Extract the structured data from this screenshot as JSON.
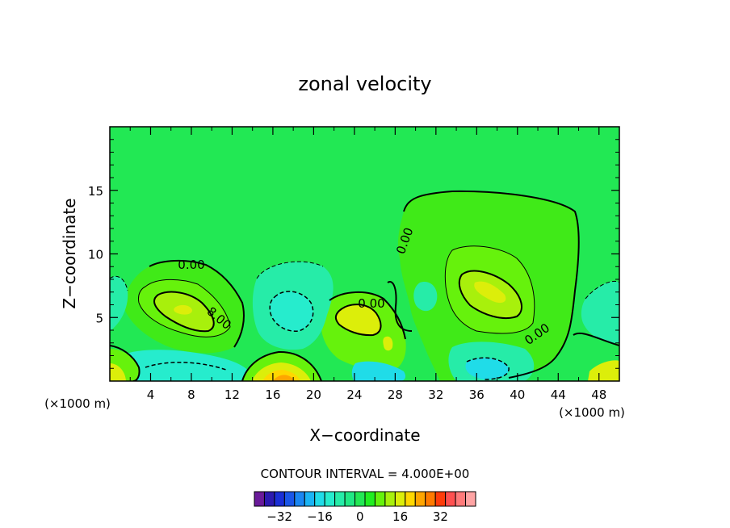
{
  "chart_data": {
    "type": "contour",
    "title": "zonal velocity",
    "xlabel": "X−coordinate",
    "ylabel": "Z−coordinate",
    "x_unit_left": "(×1000 m)",
    "x_unit_right": "(×1000 m)",
    "xlim": [
      0,
      50
    ],
    "ylim": [
      0,
      20
    ],
    "x_ticks": [
      4,
      8,
      12,
      16,
      20,
      24,
      28,
      32,
      36,
      40,
      44,
      48
    ],
    "x_tick_labels": [
      "4",
      "8",
      "12",
      "16",
      "20",
      "24",
      "28",
      "32",
      "36",
      "40",
      "44",
      "48"
    ],
    "y_ticks": [
      5,
      10,
      15
    ],
    "y_tick_labels": [
      "5",
      "10",
      "15"
    ],
    "contour_labels": [
      "0.00",
      "8.00",
      "0.00",
      "0.00",
      "0.00"
    ],
    "contour_interval_text": "CONTOUR INTERVAL = 4.000E+00",
    "colorbar": {
      "tick_labels": [
        "−32",
        "−16",
        "0",
        "16",
        "32"
      ],
      "tick_values": [
        -32,
        -16,
        0,
        16,
        32
      ],
      "levels": [
        -36,
        -32,
        -28,
        -24,
        -20,
        -16,
        -12,
        -8,
        -4,
        0,
        4,
        8,
        12,
        16,
        20,
        24,
        28,
        32,
        36
      ],
      "colors": [
        "#6a1b9a",
        "#2c1ab0",
        "#1a2fd6",
        "#1a56e8",
        "#1a86f2",
        "#1ab4f5",
        "#20dce8",
        "#26eccd",
        "#26eca8",
        "#20e884",
        "#22e854",
        "#20ee20",
        "#66f20c",
        "#a8f00c",
        "#dcee0a",
        "#ffd700",
        "#ffa500",
        "#ff7a00",
        "#ff3c0a",
        "#ff5050",
        "#ff7a7a",
        "#ffa4a4"
      ]
    },
    "background_level": 0,
    "grid": false
  }
}
